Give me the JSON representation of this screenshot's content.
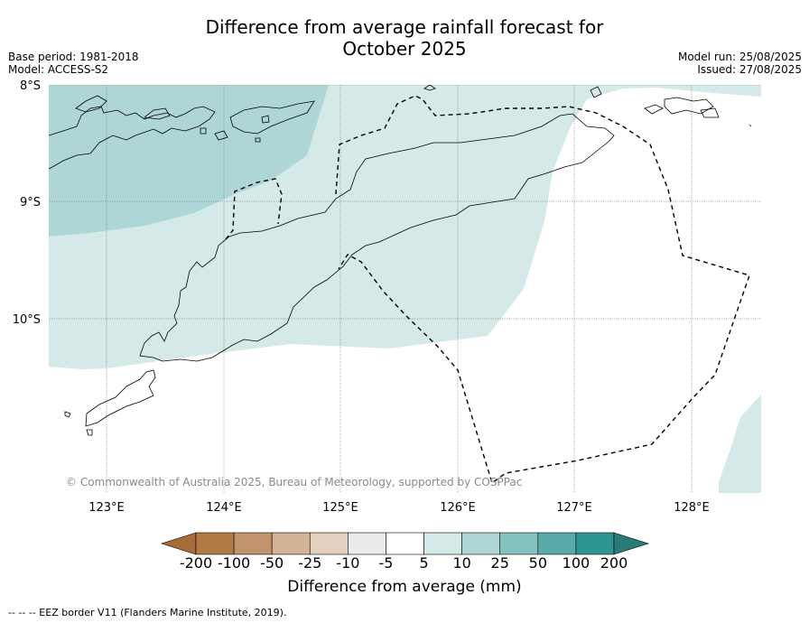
{
  "title_line1": "Difference from average rainfall forecast for",
  "title_line2": "October 2025",
  "meta_left": {
    "base_period": "Base period: 1981-2018",
    "model": "Model: ACCESS-S2"
  },
  "meta_right": {
    "model_run": "Model run: 25/08/2025",
    "issued": "Issued: 27/08/2025"
  },
  "map": {
    "lat_labels": [
      "8°S",
      "9°S",
      "10°S"
    ],
    "lon_labels": [
      "123°E",
      "124°E",
      "125°E",
      "126°E",
      "127°E",
      "128°E"
    ],
    "extent": {
      "lon": [
        122.5,
        128.6
      ],
      "lat": [
        -11.5,
        -8.0
      ]
    },
    "copyright": "© Commonwealth of Australia 2025, Bureau of Meteorology, supported by COSPPac",
    "fill_colors": {
      "band_5_10": "#d5e9e8",
      "band_10_25": "#aed6d6"
    }
  },
  "colorbar": {
    "label": "Difference from average (mm)",
    "ticks": [
      "-200",
      "-100",
      "-50",
      "-25",
      "-10",
      "-5",
      "5",
      "10",
      "25",
      "50",
      "100",
      "200"
    ],
    "colors": [
      "#a66b36",
      "#b27a45",
      "#c2946b",
      "#d3b295",
      "#e3d0bf",
      "#ebebeb",
      "#ffffff",
      "#d5e9e8",
      "#aed6d6",
      "#84c2c0",
      "#5aaaa9",
      "#2e9591",
      "#2a7a77"
    ]
  },
  "footnote": "--  --  -- EEZ border V11 (Flanders Marine Institute, 2019)."
}
